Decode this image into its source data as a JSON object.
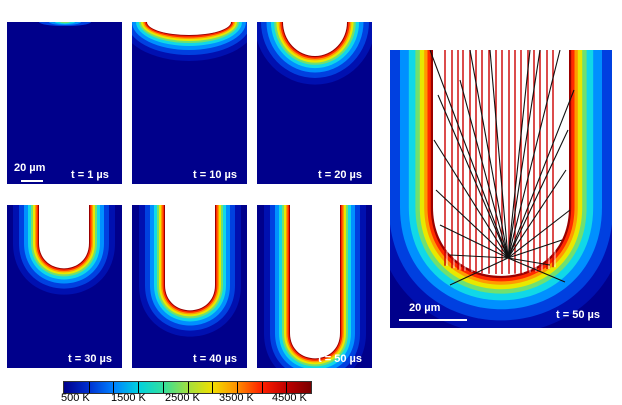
{
  "panels": [
    {
      "time_label": "t = 1 µs"
    },
    {
      "time_label": "t = 10 µs"
    },
    {
      "time_label": "t = 20 µs"
    },
    {
      "time_label": "t = 30 µs"
    },
    {
      "time_label": "t = 40 µs"
    },
    {
      "time_label": "t = 50 µs"
    }
  ],
  "small_scale_label": "20 µm",
  "large_panel": {
    "time_label": "t = 50 µs",
    "scale_label": "20 µm"
  },
  "colorbar": {
    "labels": [
      "500 K",
      "1500 K",
      "2500 K",
      "3500 K",
      "4500 K"
    ],
    "gradient": [
      "#00008b",
      "#0030d0",
      "#0080ff",
      "#00d0e0",
      "#30e0a0",
      "#a0e040",
      "#f0e000",
      "#ff9000",
      "#ff2000",
      "#c00000",
      "#7a0000"
    ]
  },
  "colors": {
    "background": "#00008b",
    "ray_red": "#cc0000",
    "ray_black": "#111111",
    "ray_white": "#ffffff"
  }
}
